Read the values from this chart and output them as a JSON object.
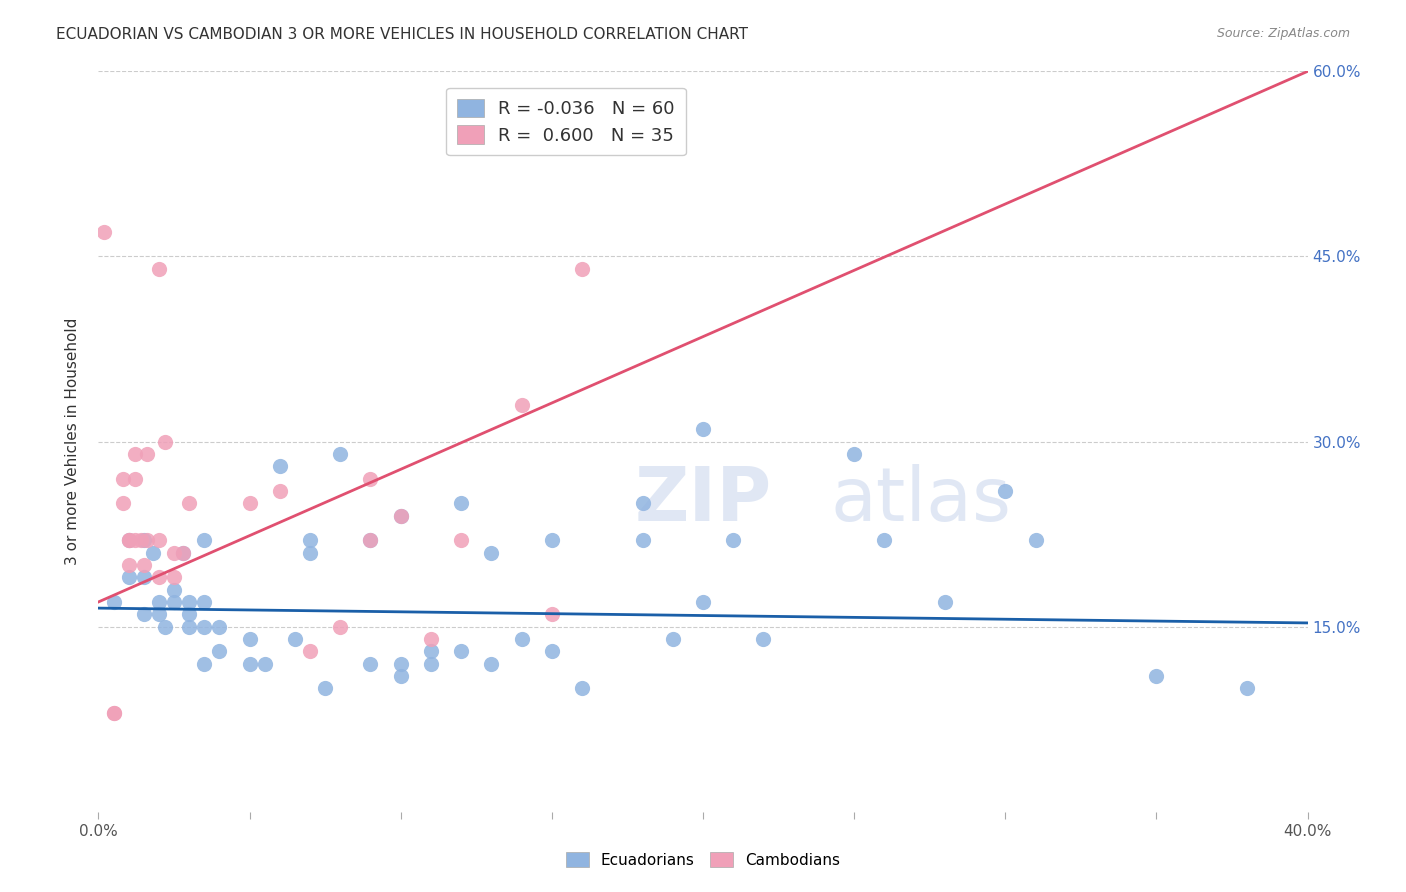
{
  "title": "ECUADORIAN VS CAMBODIAN 3 OR MORE VEHICLES IN HOUSEHOLD CORRELATION CHART",
  "source": "Source: ZipAtlas.com",
  "ylabel": "3 or more Vehicles in Household",
  "xmin": 0.0,
  "xmax": 0.4,
  "ymin": 0.0,
  "ymax": 0.6,
  "legend_blue_R": "-0.036",
  "legend_blue_N": "60",
  "legend_pink_R": "0.600",
  "legend_pink_N": "35",
  "blue_color": "#90b4e0",
  "pink_color": "#f0a0b8",
  "blue_line_color": "#1a5fa8",
  "pink_line_color": "#e05070",
  "right_tick_color": "#4472C4",
  "blue_scatter_x": [
    0.005,
    0.01,
    0.01,
    0.015,
    0.015,
    0.015,
    0.018,
    0.02,
    0.02,
    0.022,
    0.025,
    0.025,
    0.028,
    0.03,
    0.03,
    0.03,
    0.035,
    0.035,
    0.035,
    0.035,
    0.04,
    0.04,
    0.05,
    0.05,
    0.055,
    0.06,
    0.065,
    0.07,
    0.07,
    0.075,
    0.08,
    0.09,
    0.09,
    0.1,
    0.1,
    0.1,
    0.11,
    0.11,
    0.12,
    0.12,
    0.13,
    0.13,
    0.14,
    0.15,
    0.15,
    0.16,
    0.18,
    0.18,
    0.19,
    0.2,
    0.2,
    0.21,
    0.22,
    0.25,
    0.26,
    0.28,
    0.3,
    0.31,
    0.35,
    0.38
  ],
  "blue_scatter_y": [
    0.17,
    0.22,
    0.19,
    0.16,
    0.19,
    0.22,
    0.21,
    0.17,
    0.16,
    0.15,
    0.17,
    0.18,
    0.21,
    0.15,
    0.16,
    0.17,
    0.12,
    0.15,
    0.22,
    0.17,
    0.13,
    0.15,
    0.12,
    0.14,
    0.12,
    0.28,
    0.14,
    0.21,
    0.22,
    0.1,
    0.29,
    0.12,
    0.22,
    0.11,
    0.12,
    0.24,
    0.12,
    0.13,
    0.25,
    0.13,
    0.12,
    0.21,
    0.14,
    0.13,
    0.22,
    0.1,
    0.25,
    0.22,
    0.14,
    0.31,
    0.17,
    0.22,
    0.14,
    0.29,
    0.22,
    0.17,
    0.26,
    0.22,
    0.11,
    0.1
  ],
  "pink_scatter_x": [
    0.002,
    0.005,
    0.005,
    0.008,
    0.008,
    0.01,
    0.01,
    0.01,
    0.012,
    0.012,
    0.012,
    0.014,
    0.015,
    0.016,
    0.016,
    0.02,
    0.02,
    0.02,
    0.022,
    0.025,
    0.025,
    0.028,
    0.03,
    0.05,
    0.06,
    0.07,
    0.08,
    0.09,
    0.09,
    0.1,
    0.11,
    0.12,
    0.14,
    0.15,
    0.16
  ],
  "pink_scatter_y": [
    0.47,
    0.08,
    0.08,
    0.25,
    0.27,
    0.22,
    0.22,
    0.2,
    0.29,
    0.27,
    0.22,
    0.22,
    0.2,
    0.29,
    0.22,
    0.44,
    0.19,
    0.22,
    0.3,
    0.21,
    0.19,
    0.21,
    0.25,
    0.25,
    0.26,
    0.13,
    0.15,
    0.27,
    0.22,
    0.24,
    0.14,
    0.22,
    0.33,
    0.16,
    0.44
  ],
  "blue_line_x": [
    0.0,
    0.4
  ],
  "blue_line_y": [
    0.165,
    0.153
  ],
  "pink_line_x": [
    0.0,
    0.4
  ],
  "pink_line_y": [
    0.17,
    0.6
  ]
}
